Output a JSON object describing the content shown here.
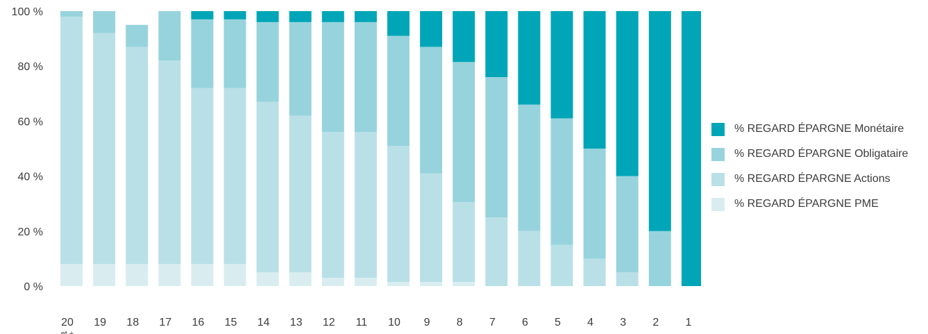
{
  "chart_data": {
    "type": "bar",
    "stacked": true,
    "categories": [
      "20",
      "19",
      "18",
      "17",
      "16",
      "15",
      "14",
      "13",
      "12",
      "11",
      "10",
      "9",
      "8",
      "7",
      "6",
      "5",
      "4",
      "3",
      "2",
      "1"
    ],
    "category_sublabels": [
      "et +",
      "",
      "",
      "",
      "",
      "",
      "",
      "",
      "",
      "",
      "",
      "",
      "",
      "",
      "",
      "",
      "",
      "",
      "",
      ""
    ],
    "yticks": [
      "0 %",
      "20 %",
      "40 %",
      "60 %",
      "80 %",
      "100 %"
    ],
    "ylim": [
      0,
      100
    ],
    "series": [
      {
        "name": "% REGARD ÉPARGNE PME",
        "color": "#d9edf1",
        "values": [
          8,
          8,
          8,
          8,
          8,
          8,
          5,
          5,
          3,
          3,
          1.5,
          1.5,
          1.5,
          0,
          0,
          0,
          0,
          0,
          0,
          0
        ]
      },
      {
        "name": "% REGARD ÉPARGNE Actions",
        "color": "#b9e0e7",
        "values": [
          90,
          84,
          79,
          74,
          64,
          64,
          62,
          57,
          53,
          53,
          49.5,
          39.5,
          29,
          25,
          20,
          15,
          10,
          5,
          0,
          0
        ]
      },
      {
        "name": "% REGARD ÉPARGNE Obligataire",
        "color": "#97d3dc",
        "values": [
          2,
          8,
          8,
          18,
          25,
          25,
          29,
          34,
          40,
          40,
          40,
          46,
          51,
          51,
          46,
          46,
          40,
          35,
          20,
          0
        ]
      },
      {
        "name": "% REGARD ÉPARGNE Monétaire",
        "color": "#00a6b8",
        "values": [
          0,
          0,
          0,
          0,
          3,
          3,
          4,
          4,
          4,
          4,
          9,
          13,
          18.5,
          24,
          34,
          39,
          50,
          60,
          80,
          100
        ]
      }
    ],
    "legend_order": [
      3,
      2,
      1,
      0
    ],
    "legend_position": "right",
    "grid": false
  }
}
